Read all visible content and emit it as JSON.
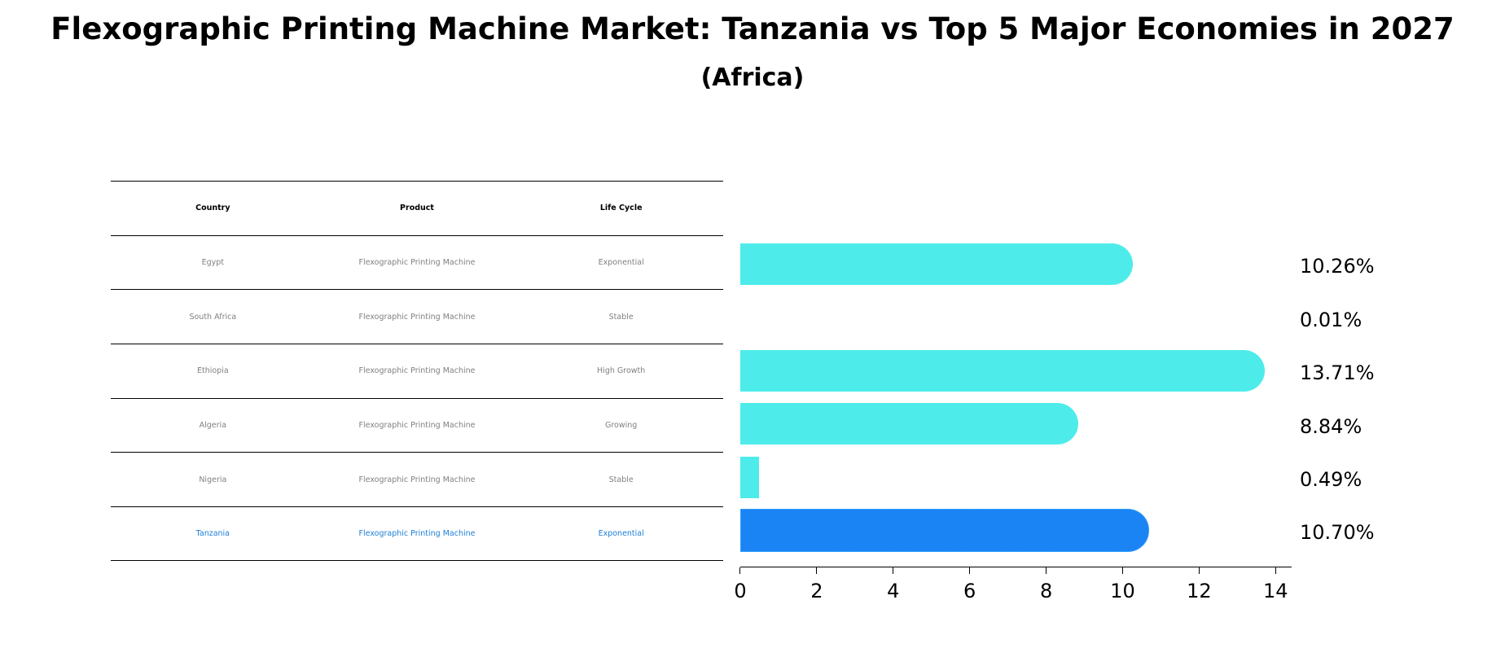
{
  "title": "Flexographic Printing Machine Market: Tanzania vs Top 5 Major Economies in 2027",
  "subtitle": "(Africa)",
  "table": {
    "headers": [
      "Country",
      "Product",
      "Life Cycle"
    ],
    "rows": [
      [
        "Egypt",
        "Flexographic Printing Machine",
        "Exponential"
      ],
      [
        "South Africa",
        "Flexographic Printing Machine",
        "Stable"
      ],
      [
        "Ethiopia",
        "Flexographic Printing Machine",
        "High Growth"
      ],
      [
        "Algeria",
        "Flexographic Printing Machine",
        "Growing"
      ],
      [
        "Nigeria",
        "Flexographic Printing Machine",
        "Stable"
      ],
      [
        "Tanzania",
        "Flexographic Printing Machine",
        "Exponential"
      ]
    ],
    "highlight_row": 5
  },
  "colors": {
    "bar": "#4deceb",
    "highlight_bar": "#1a84f4",
    "highlight_text": "#1e7fd6",
    "table_text": "#808080"
  },
  "bar_labels": [
    "10.26%",
    "0.01%",
    "13.71%",
    "8.84%",
    "0.49%",
    "10.70%"
  ],
  "x_ticks": [
    "0",
    "2",
    "4",
    "6",
    "8",
    "10",
    "12",
    "14"
  ],
  "chart_data": {
    "type": "bar",
    "orientation": "horizontal",
    "title": "Flexographic Printing Machine Market: Tanzania vs Top 5 Major Economies in 2027",
    "subtitle": "(Africa)",
    "categories": [
      "Egypt",
      "South Africa",
      "Ethiopia",
      "Algeria",
      "Nigeria",
      "Tanzania"
    ],
    "values": [
      10.26,
      0.01,
      13.71,
      8.84,
      0.49,
      10.7
    ],
    "value_labels": [
      "10.26%",
      "0.01%",
      "13.71%",
      "8.84%",
      "0.49%",
      "10.70%"
    ],
    "highlight": "Tanzania",
    "xlabel": "",
    "ylabel": "",
    "xlim": [
      0,
      14.4
    ],
    "x_ticks": [
      0,
      2,
      4,
      6,
      8,
      10,
      12,
      14
    ],
    "grid": false,
    "legend": null,
    "companion_table": {
      "columns": [
        "Country",
        "Product",
        "Life Cycle"
      ],
      "rows": [
        [
          "Egypt",
          "Flexographic Printing Machine",
          "Exponential"
        ],
        [
          "South Africa",
          "Flexographic Printing Machine",
          "Stable"
        ],
        [
          "Ethiopia",
          "Flexographic Printing Machine",
          "High Growth"
        ],
        [
          "Algeria",
          "Flexographic Printing Machine",
          "Growing"
        ],
        [
          "Nigeria",
          "Flexographic Printing Machine",
          "Stable"
        ],
        [
          "Tanzania",
          "Flexographic Printing Machine",
          "Exponential"
        ]
      ]
    }
  }
}
